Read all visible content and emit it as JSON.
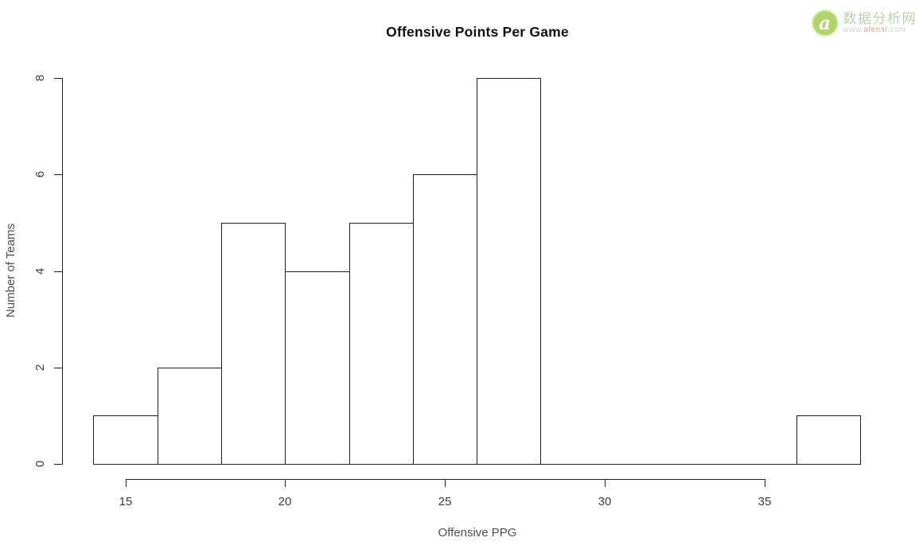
{
  "watermark": {
    "logo_letter": "a",
    "site_name": "数据分析网",
    "url_prefix": "www.",
    "url_highlight": "afenxi",
    "url_suffix": ".com",
    "logo_color": "#a9d25e",
    "site_name_color": "#b9cda4",
    "url_color": "#cccccc",
    "url_highlight_color": "#ec9a78"
  },
  "chart_data": {
    "type": "bar",
    "subtype": "histogram",
    "title": "Offensive Points Per Game",
    "xlabel": "Offensive PPG",
    "ylabel": "Number of Teams",
    "bin_breaks": [
      14,
      16,
      18,
      20,
      22,
      24,
      26,
      28,
      30,
      32,
      34,
      36,
      38
    ],
    "counts": [
      1,
      2,
      5,
      4,
      5,
      6,
      8,
      0,
      0,
      0,
      0,
      1
    ],
    "x_ticks": [
      15,
      20,
      25,
      30,
      35
    ],
    "y_ticks": [
      0,
      2,
      4,
      6,
      8
    ],
    "xlim": [
      14,
      38
    ],
    "ylim": [
      0,
      8
    ],
    "grid": false,
    "legend": "none",
    "bar_fill": "#ffffff",
    "bar_border": "#1f1f1f",
    "axis_color": "#1f1f1f",
    "tick_label_color": "#3d3d3d",
    "axis_label_color": "#4f4f4f"
  }
}
